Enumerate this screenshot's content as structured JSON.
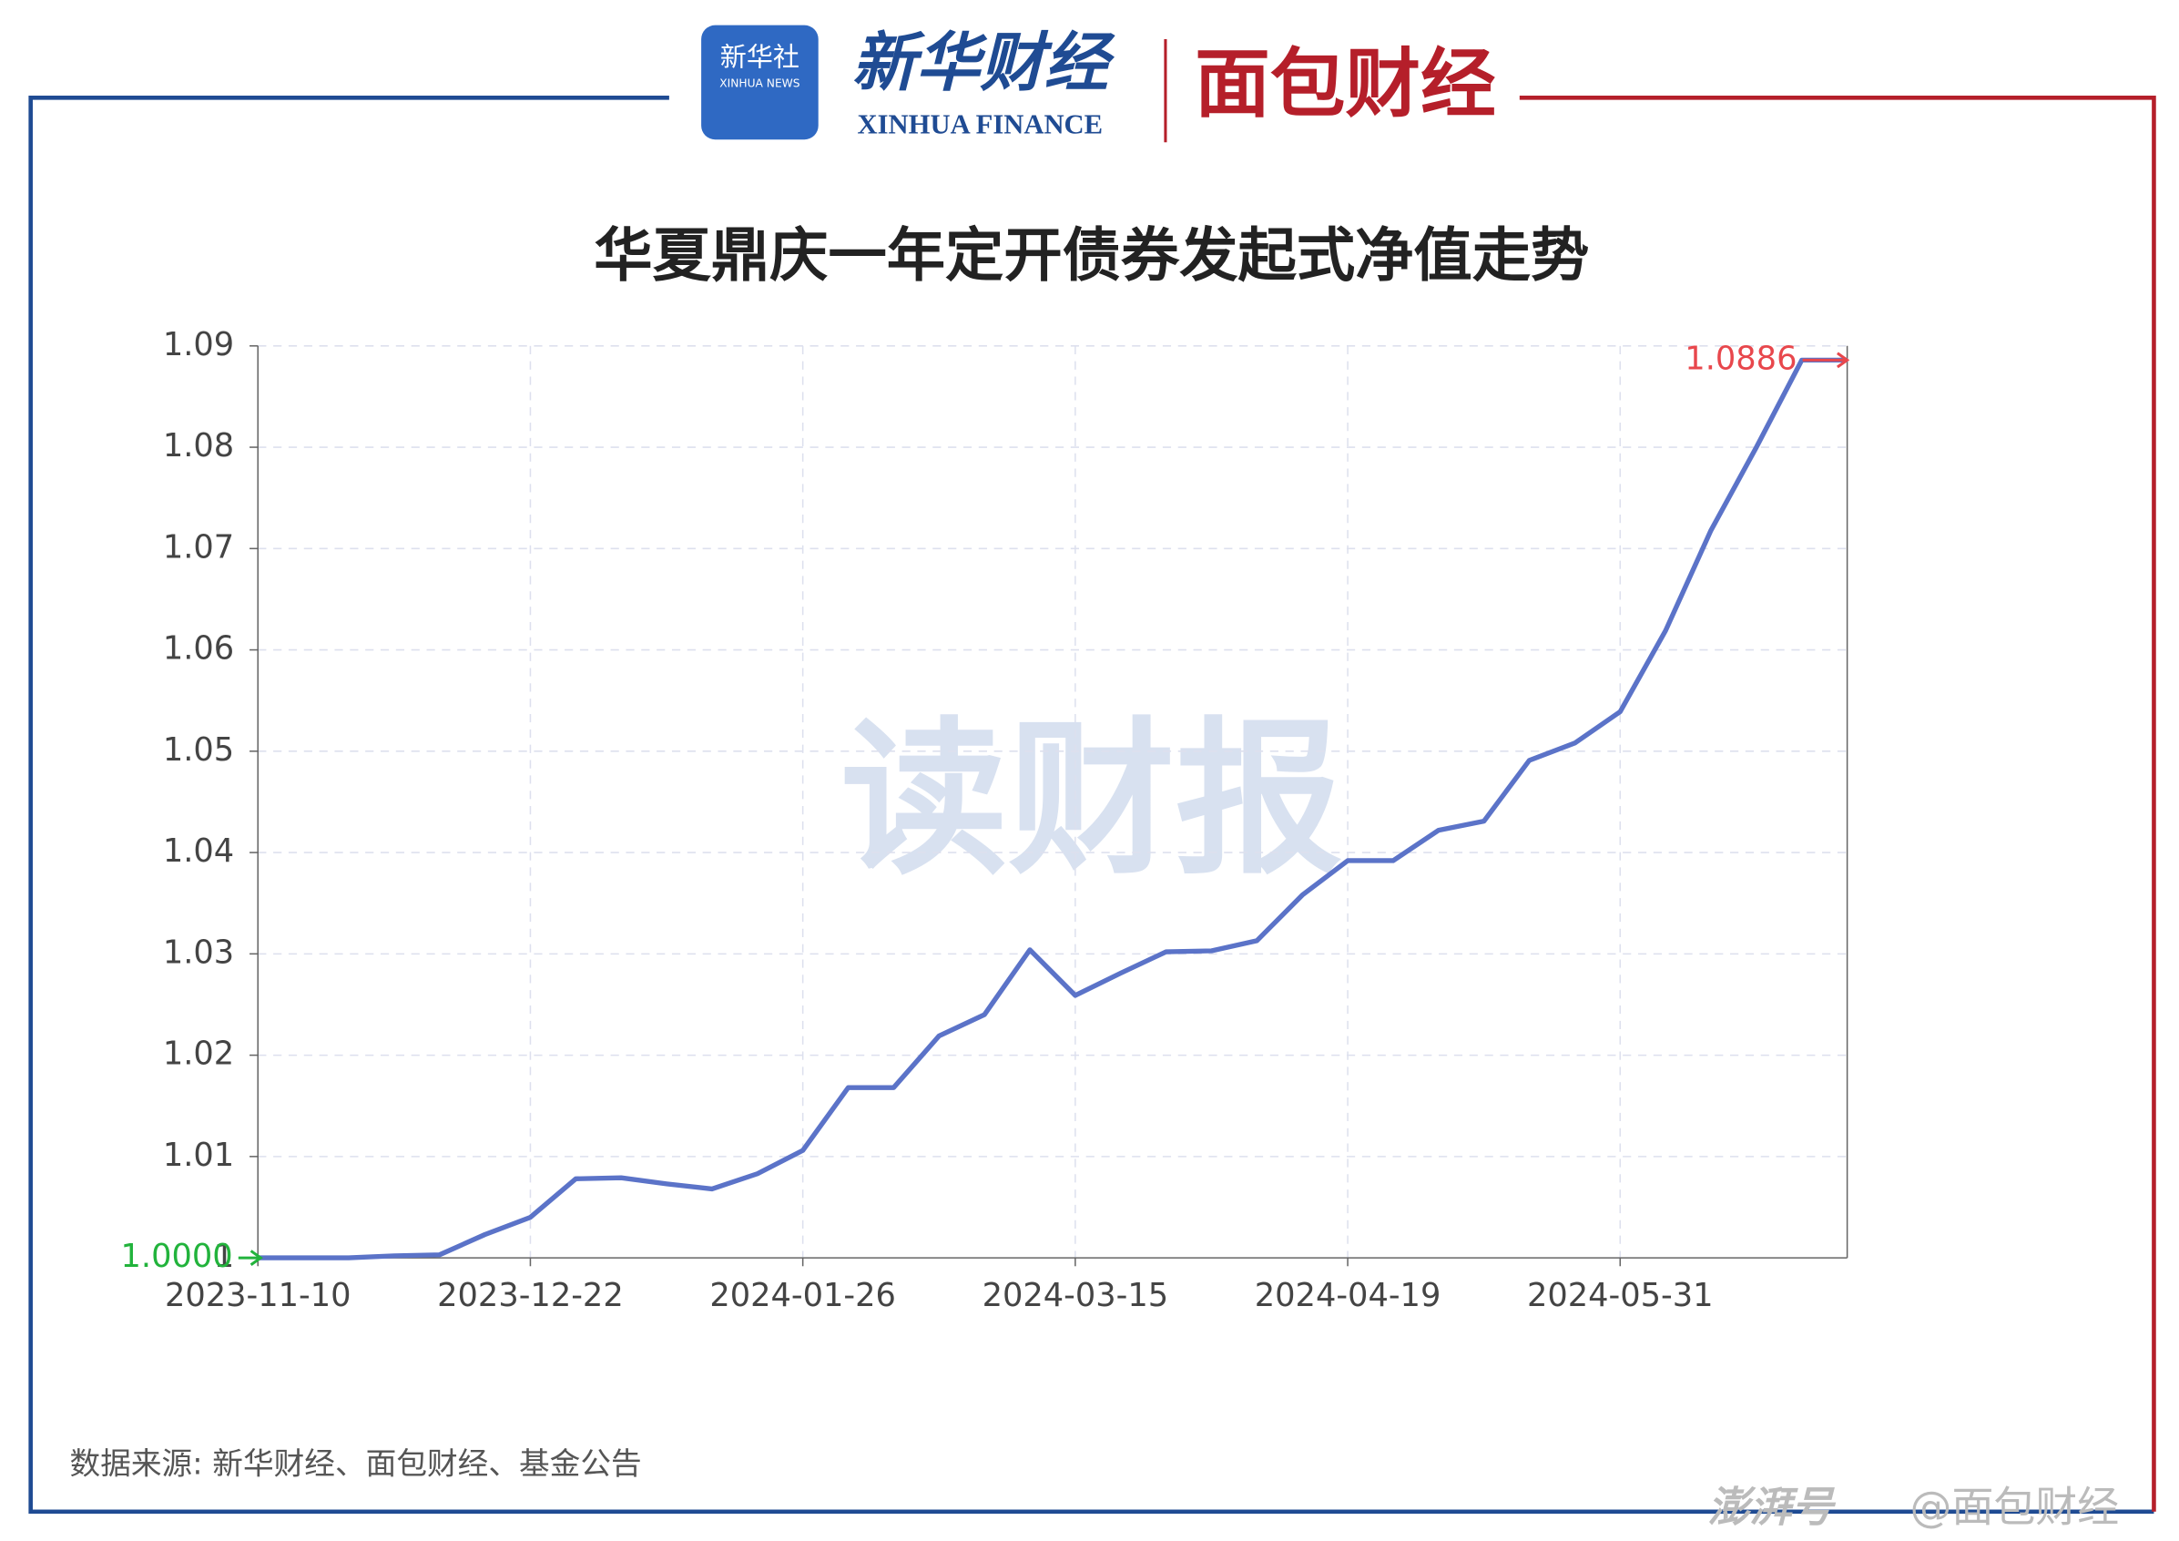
{
  "header": {
    "xinhua_logo": "新华社",
    "xinhua_logo_en": "XINHUA NEWS",
    "brand": "新华财经",
    "brand_en": "XINHUA FINANCE",
    "partner": "面包财经"
  },
  "watermark": "读财报",
  "source": "数据来源: 新华财经、面包财经、基金公告",
  "footer": {
    "platform": "澎湃号",
    "account": "@面包财经"
  },
  "chart_data": {
    "type": "line",
    "title": "华夏鼎庆一年定开债券发起式净值走势",
    "categories": [
      "2023-11-10",
      null,
      null,
      null,
      null,
      null,
      "2023-12-22",
      null,
      null,
      null,
      null,
      null,
      "2024-01-26",
      null,
      null,
      null,
      null,
      null,
      "2024-03-15",
      null,
      null,
      null,
      null,
      null,
      "2024-04-19",
      null,
      null,
      null,
      null,
      null,
      "2024-05-31",
      null,
      null,
      null,
      null,
      null
    ],
    "values": [
      1.0,
      1.0,
      1.0,
      1.0002,
      1.0003,
      1.0023,
      1.004,
      1.0078,
      1.0079,
      1.0073,
      1.0068,
      1.0083,
      1.0106,
      1.0168,
      1.0168,
      1.0219,
      1.024,
      1.0304,
      1.0259,
      1.0281,
      1.0302,
      1.0303,
      1.0313,
      1.0358,
      1.0392,
      1.0392,
      1.0422,
      1.0431,
      1.0491,
      1.0508,
      1.0539,
      1.0619,
      1.0718,
      1.08,
      1.0886,
      1.0886
    ],
    "color": "#5b73c8",
    "ylim": [
      1,
      1.09
    ],
    "yticks": [
      1,
      1.01,
      1.02,
      1.03,
      1.04,
      1.05,
      1.06,
      1.07,
      1.08,
      1.09
    ],
    "grid": true,
    "marklines": [
      {
        "value": 1,
        "label": "1.0000",
        "color": "#22b33c"
      },
      {
        "value": 1.0886,
        "label": "1.0886",
        "color": "#e8474c"
      }
    ]
  }
}
